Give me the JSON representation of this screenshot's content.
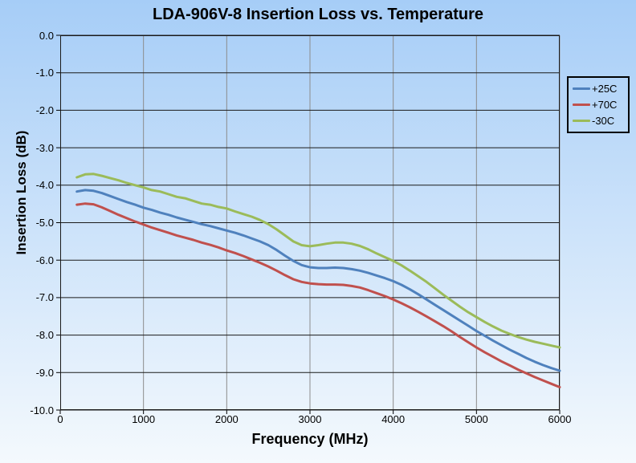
{
  "title": "LDA-906V-8 Insertion Loss vs. Temperature",
  "x_axis": {
    "label": "Frequency (MHz)",
    "ticks": [
      "0",
      "1000",
      "2000",
      "3000",
      "4000",
      "5000",
      "6000"
    ]
  },
  "y_axis": {
    "label": "Insertion Loss (dB)",
    "ticks": [
      "0.0",
      "-1.0",
      "-2.0",
      "-3.0",
      "-4.0",
      "-5.0",
      "-6.0",
      "-7.0",
      "-8.0",
      "-9.0",
      "-10.0"
    ]
  },
  "legend": [
    {
      "label": "+25C",
      "color": "#4F81BD"
    },
    {
      "label": "+70C",
      "color": "#C0504D"
    },
    {
      "label": "-30C",
      "color": "#9BBB59"
    }
  ],
  "colors": {
    "horizontal_grid": "#1a1a1a",
    "vertical_grid": "#8c8c8c",
    "plot_border": "#1a1a1a",
    "background_top": "#a6cdf7",
    "background_bottom": "#f4f9fd"
  },
  "chart_data": {
    "type": "line",
    "title": "LDA-906V-8 Insertion Loss vs. Temperature",
    "xlabel": "Frequency (MHz)",
    "ylabel": "Insertion Loss (dB)",
    "xlim": [
      0,
      6000
    ],
    "ylim": [
      -10,
      0
    ],
    "grid": true,
    "legend_position": "right",
    "x": [
      200,
      300,
      400,
      500,
      600,
      700,
      800,
      900,
      1000,
      1100,
      1200,
      1300,
      1400,
      1500,
      1600,
      1700,
      1800,
      1900,
      2000,
      2100,
      2200,
      2300,
      2400,
      2500,
      2600,
      2700,
      2800,
      2900,
      3000,
      3100,
      3200,
      3300,
      3400,
      3500,
      3600,
      3700,
      3800,
      3900,
      4000,
      4100,
      4200,
      4300,
      4400,
      4500,
      4600,
      4700,
      4800,
      4900,
      5000,
      5100,
      5200,
      5300,
      5400,
      5500,
      5600,
      5700,
      5800,
      5900,
      6000
    ],
    "series": [
      {
        "name": "+25C",
        "color": "#4F81BD",
        "values": [
          -4.17,
          -4.13,
          -4.15,
          -4.21,
          -4.29,
          -4.37,
          -4.45,
          -4.52,
          -4.6,
          -4.66,
          -4.73,
          -4.79,
          -4.86,
          -4.92,
          -4.98,
          -5.04,
          -5.09,
          -5.15,
          -5.21,
          -5.27,
          -5.34,
          -5.42,
          -5.5,
          -5.6,
          -5.73,
          -5.88,
          -6.02,
          -6.13,
          -6.19,
          -6.21,
          -6.21,
          -6.2,
          -6.21,
          -6.24,
          -6.28,
          -6.34,
          -6.41,
          -6.48,
          -6.56,
          -6.66,
          -6.78,
          -6.91,
          -7.05,
          -7.19,
          -7.33,
          -7.47,
          -7.61,
          -7.75,
          -7.89,
          -8.02,
          -8.15,
          -8.27,
          -8.39,
          -8.5,
          -8.61,
          -8.71,
          -8.8,
          -8.88,
          -8.95
        ]
      },
      {
        "name": "+70C",
        "color": "#C0504D",
        "values": [
          -4.52,
          -4.49,
          -4.51,
          -4.59,
          -4.69,
          -4.79,
          -4.88,
          -4.97,
          -5.05,
          -5.13,
          -5.2,
          -5.27,
          -5.34,
          -5.4,
          -5.46,
          -5.53,
          -5.59,
          -5.66,
          -5.74,
          -5.81,
          -5.89,
          -5.98,
          -6.07,
          -6.17,
          -6.28,
          -6.4,
          -6.51,
          -6.58,
          -6.62,
          -6.64,
          -6.65,
          -6.65,
          -6.66,
          -6.69,
          -6.73,
          -6.8,
          -6.88,
          -6.96,
          -7.05,
          -7.15,
          -7.26,
          -7.38,
          -7.5,
          -7.63,
          -7.76,
          -7.9,
          -8.05,
          -8.19,
          -8.33,
          -8.46,
          -8.58,
          -8.7,
          -8.81,
          -8.92,
          -9.02,
          -9.12,
          -9.21,
          -9.3,
          -9.39
        ]
      },
      {
        "name": "-30C",
        "color": "#9BBB59",
        "values": [
          -3.79,
          -3.71,
          -3.7,
          -3.75,
          -3.81,
          -3.87,
          -3.94,
          -4.0,
          -4.06,
          -4.13,
          -4.17,
          -4.24,
          -4.31,
          -4.35,
          -4.42,
          -4.49,
          -4.52,
          -4.58,
          -4.62,
          -4.7,
          -4.77,
          -4.84,
          -4.93,
          -5.04,
          -5.18,
          -5.34,
          -5.5,
          -5.6,
          -5.63,
          -5.6,
          -5.56,
          -5.53,
          -5.53,
          -5.56,
          -5.62,
          -5.71,
          -5.82,
          -5.92,
          -6.02,
          -6.14,
          -6.28,
          -6.43,
          -6.58,
          -6.75,
          -6.92,
          -7.08,
          -7.24,
          -7.39,
          -7.52,
          -7.65,
          -7.77,
          -7.88,
          -7.97,
          -8.05,
          -8.12,
          -8.18,
          -8.23,
          -8.28,
          -8.33
        ]
      }
    ]
  }
}
